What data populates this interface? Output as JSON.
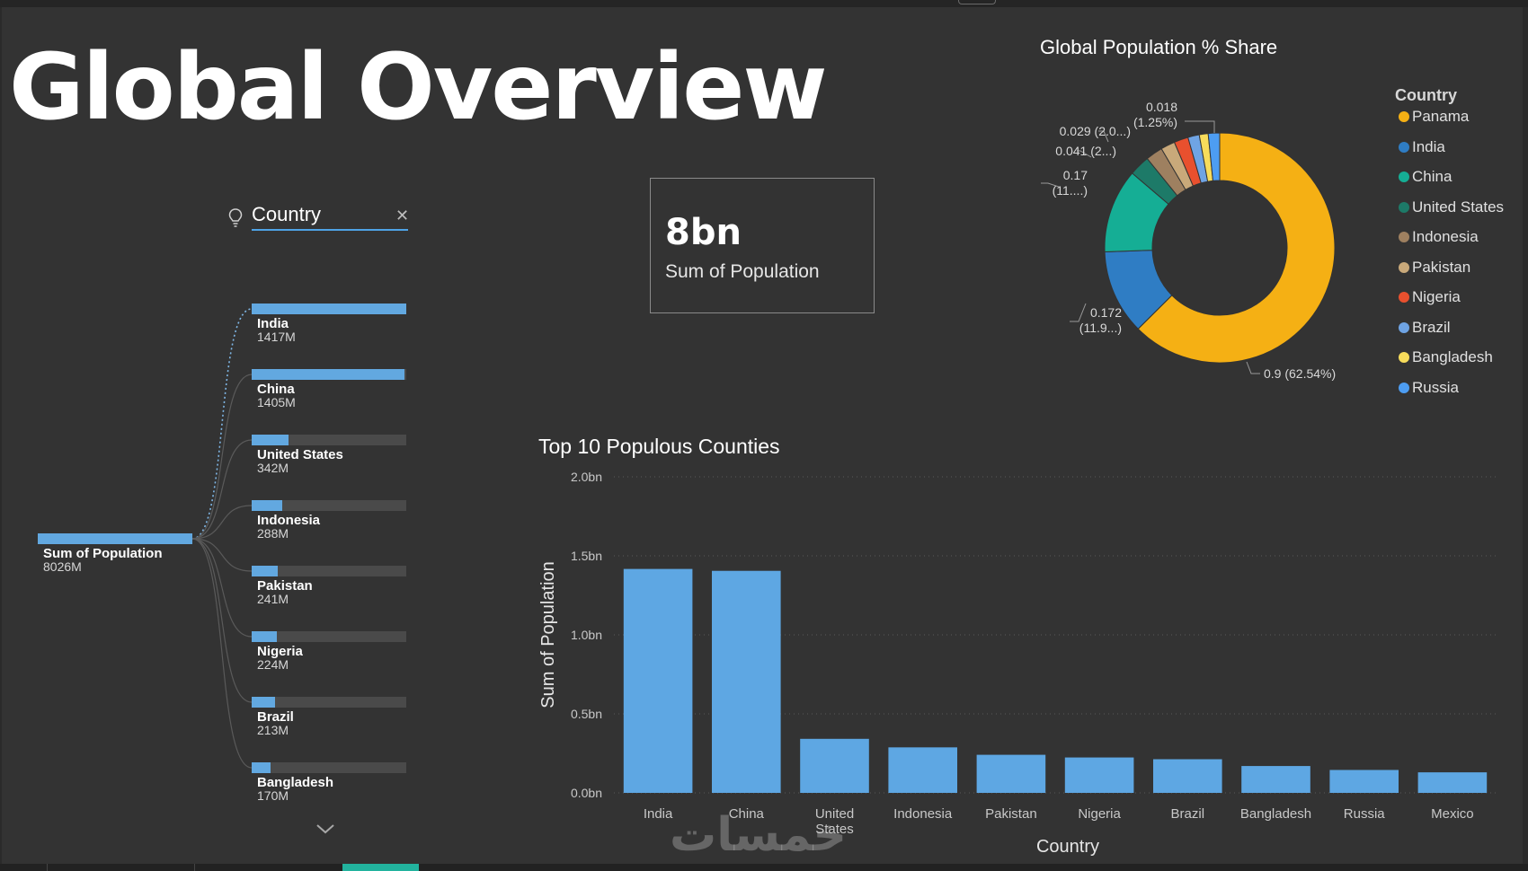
{
  "page": {
    "title": "Global Overview"
  },
  "decomposition_tree": {
    "field_label": "Country",
    "root": {
      "name": "Sum of Population",
      "value": "8026M",
      "fill_fraction": 1.0
    },
    "nodes": [
      {
        "name": "India",
        "value": "1417M",
        "fill_fraction": 1.0,
        "highlighted": true
      },
      {
        "name": "China",
        "value": "1405M",
        "fill_fraction": 0.99
      },
      {
        "name": "United States",
        "value": "342M",
        "fill_fraction": 0.24
      },
      {
        "name": "Indonesia",
        "value": "288M",
        "fill_fraction": 0.2
      },
      {
        "name": "Pakistan",
        "value": "241M",
        "fill_fraction": 0.17
      },
      {
        "name": "Nigeria",
        "value": "224M",
        "fill_fraction": 0.16
      },
      {
        "name": "Brazil",
        "value": "213M",
        "fill_fraction": 0.15
      },
      {
        "name": "Bangladesh",
        "value": "170M",
        "fill_fraction": 0.12
      }
    ]
  },
  "kpi": {
    "value": "8bn",
    "label": "Sum of Population"
  },
  "donut": {
    "title": "Global Population % Share",
    "legend_title": "Country",
    "slices": [
      {
        "name": "Panama",
        "share": 62.54,
        "color": "#f5b014"
      },
      {
        "name": "India",
        "share": 11.9,
        "color": "#2f7dc4"
      },
      {
        "name": "China",
        "share": 11.8,
        "color": "#15ae95"
      },
      {
        "name": "United States",
        "share": 2.9,
        "color": "#1d7a68"
      },
      {
        "name": "Indonesia",
        "share": 2.4,
        "color": "#9e8060"
      },
      {
        "name": "Pakistan",
        "share": 2.0,
        "color": "#c9a97a"
      },
      {
        "name": "Nigeria",
        "share": 2.0,
        "color": "#e8502e"
      },
      {
        "name": "Brazil",
        "share": 1.6,
        "color": "#6fa4e4"
      },
      {
        "name": "Bangladesh",
        "share": 1.25,
        "color": "#f7dc5b"
      },
      {
        "name": "Russia",
        "share": 1.6,
        "color": "#4d9df2"
      }
    ],
    "labels": [
      {
        "line1": "0.9 (62.54%)"
      },
      {
        "line1": "0.172",
        "line2": "(11.9...)"
      },
      {
        "line1": "0.17",
        "line2": "(11....)"
      },
      {
        "line1": "0.041 (2...)"
      },
      {
        "line1": "0.029 (2.0...)"
      },
      {
        "line1": "0.018",
        "line2": "(1.25%)"
      }
    ]
  },
  "chart_data": {
    "type": "bar",
    "title": "Top 10 Populous Counties",
    "xlabel": "Country",
    "ylabel": "Sum of Population",
    "categories": [
      "India",
      "China",
      "United States",
      "Indonesia",
      "Pakistan",
      "Nigeria",
      "Brazil",
      "Bangladesh",
      "Russia",
      "Mexico"
    ],
    "values": [
      1.417,
      1.405,
      0.342,
      0.288,
      0.241,
      0.224,
      0.213,
      0.17,
      0.145,
      0.13
    ],
    "ylim": [
      0,
      2.0
    ],
    "yticks": [
      {
        "value": 0,
        "label": "0.0bn"
      },
      {
        "value": 0.5,
        "label": "0.5bn"
      },
      {
        "value": 1.0,
        "label": "1.0bn"
      },
      {
        "value": 1.5,
        "label": "1.5bn"
      },
      {
        "value": 2.0,
        "label": "2.0bn"
      }
    ],
    "color": "#5ea7e3",
    "grid": true
  },
  "watermark": {
    "text": "خمسات"
  }
}
